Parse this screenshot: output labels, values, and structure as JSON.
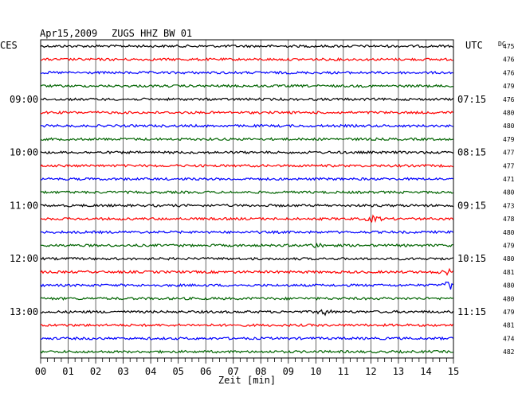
{
  "header": {
    "date": "Apr15,2009",
    "station": "ZUGS HHZ BW 01",
    "left_label": "CES",
    "right_label": "UTC",
    "dc_label": "DC"
  },
  "chart_data": {
    "type": "line",
    "title": "Apr15,2009  ZUGS HHZ BW 01",
    "xlabel": "Zeit [min]",
    "xlim": [
      0,
      15
    ],
    "x_ticks": [
      "00",
      "01",
      "02",
      "03",
      "04",
      "05",
      "06",
      "07",
      "08",
      "09",
      "10",
      "11",
      "12",
      "13",
      "14",
      "15"
    ],
    "trace_colors": [
      "#000000",
      "#ff0000",
      "#0000ff",
      "#006400"
    ],
    "grid": true,
    "left_time_labels": [
      {
        "row": 4,
        "text": "09:00"
      },
      {
        "row": 8,
        "text": "10:00"
      },
      {
        "row": 12,
        "text": "11:00"
      },
      {
        "row": 16,
        "text": "12:00"
      },
      {
        "row": 20,
        "text": "13:00"
      }
    ],
    "right_time_labels": [
      {
        "row": 4,
        "text": "07:15"
      },
      {
        "row": 8,
        "text": "08:15"
      },
      {
        "row": 12,
        "text": "09:15"
      },
      {
        "row": 16,
        "text": "10:15"
      },
      {
        "row": 20,
        "text": "11:15"
      }
    ],
    "dc_values": [
      475,
      476,
      476,
      479,
      476,
      480,
      480,
      479,
      477,
      477,
      471,
      480,
      473,
      478,
      480,
      479,
      480,
      481,
      480,
      480,
      479,
      481,
      474,
      482
    ],
    "events": [
      {
        "row": 17,
        "x_min": 14.8,
        "amplitude": 3
      },
      {
        "row": 18,
        "x_min": 14.9,
        "amplitude": 5
      },
      {
        "row": 20,
        "x_min": 10.3,
        "amplitude": 3
      },
      {
        "row": 13,
        "x_min": 12.1,
        "amplitude": 3
      },
      {
        "row": 15,
        "x_min": 10.0,
        "amplitude": 2
      }
    ]
  }
}
